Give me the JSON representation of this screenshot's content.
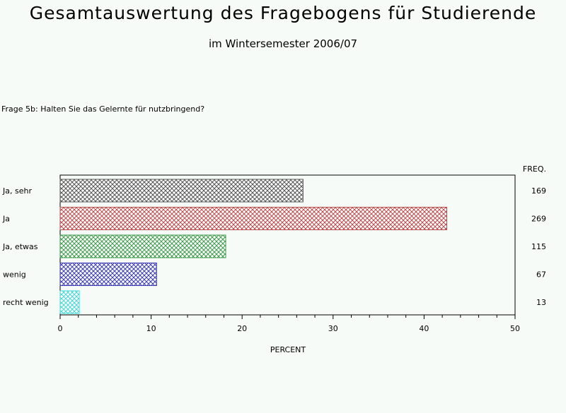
{
  "header": {
    "title": "Gesamtauswertung des Fragebogens für Studierende",
    "subtitle": "im Wintersemester 2006/07"
  },
  "question": "Frage 5b: Halten Sie das Gelernte für nutzbringend?",
  "chart_data": {
    "type": "bar",
    "orientation": "horizontal",
    "categories": [
      "Ja, sehr",
      "Ja",
      "Ja, etwas",
      "wenig",
      "recht wenig"
    ],
    "values": [
      26.7,
      42.5,
      18.2,
      10.6,
      2.1
    ],
    "freq": [
      169,
      269,
      115,
      67,
      13
    ],
    "freq_label": "FREQ.",
    "xlabel": "PERCENT",
    "ylabel": "",
    "xlim": [
      0,
      50
    ],
    "xticks": [
      0,
      10,
      20,
      30,
      40,
      50
    ],
    "grid": false,
    "colors": [
      "#555555",
      "#c04a4a",
      "#3a9a4a",
      "#3a3ab8",
      "#40d8d8"
    ],
    "pattern": "crosshatch"
  }
}
